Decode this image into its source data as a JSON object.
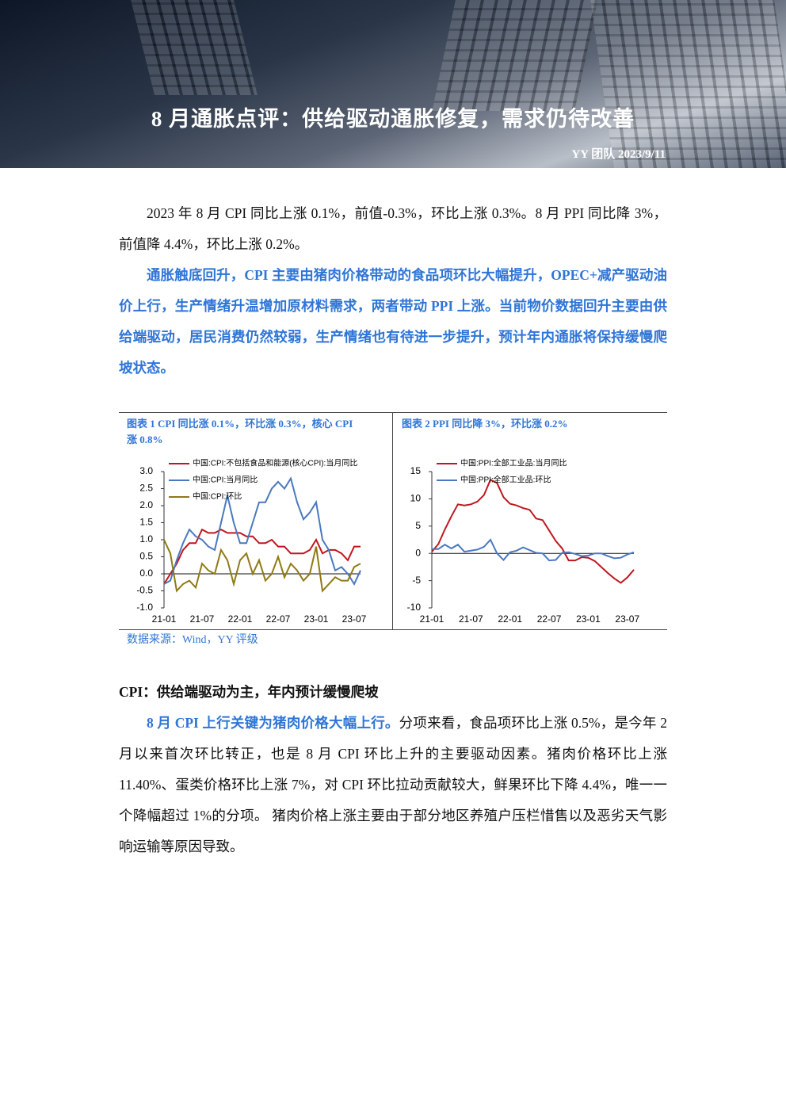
{
  "header": {
    "title": "8 月通胀点评：供给驱动通胀修复，需求仍待改善",
    "byline": "YY 团队 2023/9/11"
  },
  "intro": [
    "2023 年 8 月 CPI 同比上涨 0.1%，前值-0.3%，环比上涨 0.3%。8 月 PPI 同比降 3%，前值降 4.4%，环比上涨 0.2%。",
    "通胀触底回升，CPI 主要由猪肉价格带动的食品项环比大幅提升，OPEC+减产驱动油价上行，生产情绪升温增加原材料需求，两者带动 PPI 上涨。当前物价数据回升主要由供给端驱动，居民消费仍然较弱，生产情绪也有待进一步提升，预计年内通胀将保持缓慢爬坡状态。"
  ],
  "source": "数据来源：Wind，YY 评级",
  "section": {
    "heading": "CPI：供给端驱动为主，年内预计缓慢爬坡",
    "lead": "8 月 CPI 上行关键为猪肉价格大幅上行。",
    "body": "分项来看，食品项环比上涨 0.5%，是今年 2 月以来首次环比转正，也是 8 月 CPI 环比上升的主要驱动因素。猪肉价格环比上涨 11.40%、蛋类价格环比上涨 7%，对 CPI 环比拉动贡献较大，鲜果环比下降 4.4%，唯一一个降幅超过 1%的分项。 猪肉价格上涨主要由于部分地区养殖户压栏惜售以及恶劣天气影响运输等原因导致。"
  },
  "chart_data": [
    {
      "type": "line",
      "title": "图表 1 CPI 同比涨 0.1%，环比涨 0.3%，核心 CPI 涨 0.8%",
      "categories": [
        "21-01",
        null,
        null,
        null,
        null,
        null,
        "21-07",
        null,
        null,
        null,
        null,
        null,
        "22-01",
        null,
        null,
        null,
        null,
        null,
        "22-07",
        null,
        null,
        null,
        null,
        null,
        "23-01",
        null,
        null,
        null,
        null,
        null,
        "23-07",
        null
      ],
      "series": [
        {
          "name": "中国:CPI:不包括食品和能源(核心CPI):当月同比",
          "color": "#c0161e",
          "values": [
            -0.3,
            0.0,
            0.3,
            0.7,
            0.9,
            0.9,
            1.3,
            1.2,
            1.2,
            1.3,
            1.2,
            1.2,
            1.2,
            1.1,
            1.1,
            0.9,
            0.9,
            1.0,
            0.8,
            0.8,
            0.6,
            0.6,
            0.6,
            0.7,
            1.0,
            0.6,
            0.7,
            0.7,
            0.6,
            0.4,
            0.8,
            0.8
          ]
        },
        {
          "name": "中国:CPI:当月同比",
          "color": "#4a78c0",
          "values": [
            -0.3,
            -0.2,
            0.4,
            0.9,
            1.3,
            1.1,
            1.0,
            0.8,
            0.7,
            1.5,
            2.3,
            1.5,
            0.9,
            0.9,
            1.5,
            2.1,
            2.1,
            2.5,
            2.7,
            2.5,
            2.8,
            2.1,
            1.6,
            1.8,
            2.1,
            1.0,
            0.7,
            0.1,
            0.2,
            0.0,
            -0.3,
            0.1
          ]
        },
        {
          "name": "中国:CPI:环比",
          "color": "#8f7a14",
          "values": [
            1.0,
            0.6,
            -0.5,
            -0.3,
            -0.2,
            -0.4,
            0.3,
            0.1,
            0.0,
            0.7,
            0.4,
            -0.3,
            0.4,
            0.6,
            0.0,
            0.4,
            -0.2,
            0.0,
            0.5,
            -0.1,
            0.3,
            0.1,
            -0.2,
            0.0,
            0.8,
            -0.5,
            -0.3,
            -0.1,
            -0.2,
            -0.2,
            0.2,
            0.3
          ]
        }
      ],
      "ylim": [
        -1,
        3
      ],
      "yticks": [
        {
          "value": -1,
          "label": "-1.0"
        },
        -0.5,
        {
          "value": 0,
          "label": "0.0"
        },
        0.5,
        {
          "value": 1,
          "label": "1.0"
        },
        1.5,
        {
          "value": 2,
          "label": "2.0"
        },
        2.5,
        {
          "value": 3,
          "label": "3.0"
        }
      ],
      "legend": "top-left"
    },
    {
      "type": "line",
      "title": "图表 2 PPI 同比降 3%，环比涨 0.2%",
      "categories": [
        "21-01",
        null,
        null,
        null,
        null,
        null,
        "21-07",
        null,
        null,
        null,
        null,
        null,
        "22-01",
        null,
        null,
        null,
        null,
        null,
        "22-07",
        null,
        null,
        null,
        null,
        null,
        "23-01",
        null,
        null,
        null,
        null,
        null,
        "23-07",
        null
      ],
      "series": [
        {
          "name": "中国:PPI:全部工业品:当月同比",
          "color": "#c0161e",
          "values": [
            0.3,
            1.7,
            4.4,
            6.8,
            9.0,
            8.8,
            9.0,
            9.5,
            10.7,
            13.5,
            12.9,
            10.3,
            9.1,
            8.8,
            8.3,
            8.0,
            6.4,
            6.1,
            4.2,
            2.3,
            0.9,
            -1.3,
            -1.3,
            -0.7,
            -0.8,
            -1.4,
            -2.5,
            -3.6,
            -4.6,
            -5.4,
            -4.4,
            -3.0
          ]
        },
        {
          "name": "中国:PPI:全部工业品:环比",
          "color": "#4a78c0",
          "values": [
            0.8,
            0.8,
            1.6,
            0.9,
            1.6,
            0.3,
            0.5,
            0.7,
            1.2,
            2.5,
            0.0,
            -1.2,
            0.2,
            0.5,
            1.1,
            0.6,
            0.1,
            0.0,
            -1.3,
            -1.2,
            0.1,
            0.2,
            -0.1,
            -0.5,
            -0.4,
            0.0,
            0.0,
            -0.5,
            -0.9,
            -0.8,
            -0.2,
            0.2
          ]
        }
      ],
      "ylim": [
        -10,
        15
      ],
      "yticks": [
        -10,
        -5,
        0,
        5,
        10,
        15
      ],
      "legend": "top-left"
    }
  ]
}
